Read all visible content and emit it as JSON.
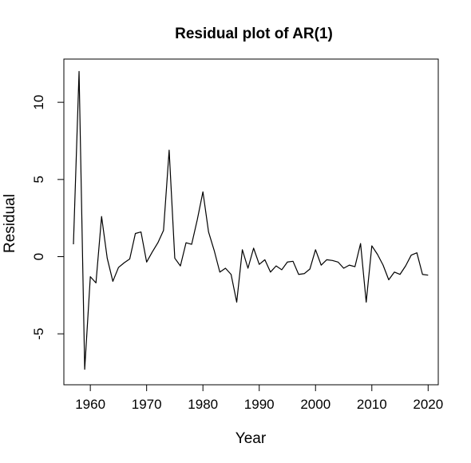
{
  "chart_data": {
    "type": "line",
    "title": "Residual plot of AR(1)",
    "xlabel": "Year",
    "ylabel": "Residual",
    "xlim": [
      1955.3,
      2021.8
    ],
    "ylim": [
      -8.3,
      12.8
    ],
    "xticks": [
      1960,
      1970,
      1980,
      1990,
      2000,
      2010,
      2020
    ],
    "yticks": [
      -5,
      0,
      5,
      10
    ],
    "grid": false,
    "legend": "none",
    "line_color": "#000000",
    "series": [
      {
        "x": [
          1957,
          1958,
          1959,
          1960,
          1961,
          1962,
          1963,
          1964,
          1965,
          1966,
          1967,
          1968,
          1969,
          1970,
          1971,
          1972,
          1973,
          1974,
          1975,
          1976,
          1977,
          1978,
          1979,
          1980,
          1981,
          1982,
          1983,
          1984,
          1985,
          1986,
          1987,
          1988,
          1989,
          1990,
          1991,
          1992,
          1993,
          1994,
          1995,
          1996,
          1997,
          1998,
          1999,
          2000,
          2001,
          2002,
          2003,
          2004,
          2005,
          2006,
          2007,
          2008,
          2009,
          2010,
          2011,
          2012,
          2013,
          2014,
          2015,
          2016,
          2017,
          2018,
          2019,
          2020
        ],
        "values": [
          0.8,
          12.0,
          -7.3,
          -1.3,
          -1.7,
          2.6,
          -0.1,
          -1.6,
          -0.7,
          -0.4,
          -0.15,
          1.5,
          1.6,
          -0.35,
          0.3,
          0.9,
          1.7,
          6.9,
          -0.1,
          -0.6,
          0.9,
          0.8,
          2.4,
          4.2,
          1.6,
          0.4,
          -1.0,
          -0.75,
          -1.15,
          -2.95,
          0.45,
          -0.75,
          0.55,
          -0.5,
          -0.2,
          -1.0,
          -0.6,
          -0.85,
          -0.35,
          -0.3,
          -1.15,
          -1.1,
          -0.8,
          0.45,
          -0.55,
          -0.2,
          -0.25,
          -0.35,
          -0.75,
          -0.55,
          -0.65,
          0.85,
          -2.95,
          0.7,
          0.15,
          -0.55,
          -1.5,
          -1.0,
          -1.15,
          -0.6,
          0.1,
          0.25,
          -1.15,
          -1.2
        ]
      }
    ]
  }
}
